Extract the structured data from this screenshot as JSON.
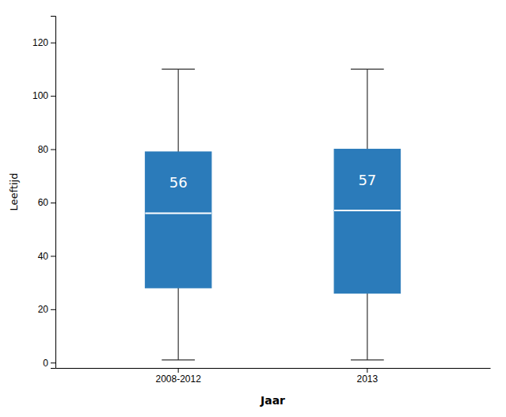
{
  "chart_data": {
    "type": "box",
    "xlabel": "Jaar",
    "ylabel": "Leeftijd",
    "categories": [
      "2008-2012",
      "2013"
    ],
    "boxes": [
      {
        "whislo": 1,
        "q1": 28,
        "med": 56,
        "q3": 79,
        "whishi": 110
      },
      {
        "whislo": 1,
        "q1": 26,
        "med": 57,
        "q3": 80,
        "whishi": 110
      }
    ],
    "color": "#2b7bba",
    "data_labels": true,
    "ylim": [
      -2,
      130
    ],
    "yticks": [
      0,
      20,
      40,
      60,
      80,
      100,
      120
    ],
    "grid": false
  }
}
